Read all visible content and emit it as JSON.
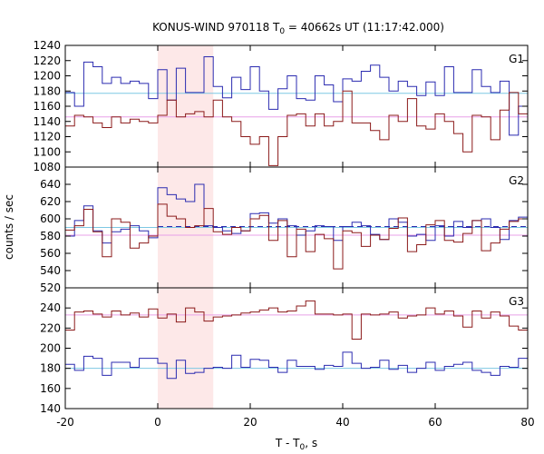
{
  "chart_data": {
    "type": "line",
    "title": "KONUS-WIND 970118 T",
    "title_sub": "0",
    "title_rest": " = 40662s UT (11:17:42.000)",
    "xlabel": "T - T",
    "xlabel_sub": "0",
    "xlabel_rest": ", s",
    "ylabel": "counts / sec",
    "xlim": [
      -20,
      80
    ],
    "x_ticks": [
      -20,
      0,
      20,
      40,
      60,
      80
    ],
    "x_tick_labels": [
      "-20",
      "0",
      "20",
      "40",
      "60",
      "80"
    ],
    "highlight_region": {
      "x_start": 0,
      "x_end": 12,
      "color": "#fde8e8"
    },
    "bin_edges": [
      -20,
      -18,
      -16,
      -14,
      -12,
      -10,
      -8,
      -6,
      -4,
      -2,
      0,
      2,
      4,
      6,
      8,
      10,
      12,
      14,
      16,
      18,
      20,
      22,
      24,
      26,
      28,
      30,
      32,
      34,
      36,
      38,
      40,
      42,
      44,
      46,
      48,
      50,
      52,
      54,
      56,
      58,
      60,
      62,
      64,
      66,
      68,
      70,
      72,
      74,
      76,
      78,
      80
    ],
    "panels": [
      {
        "name": "G1",
        "ylim": [
          1080,
          1240
        ],
        "y_ticks": [
          1080,
          1100,
          1120,
          1140,
          1160,
          1180,
          1200,
          1220,
          1240
        ],
        "series": [
          {
            "color": "#2b2bb0",
            "values": [
              1178,
              1160,
              1218,
              1212,
              1190,
              1198,
              1190,
              1193,
              1190,
              1170,
              1208,
              1168,
              1210,
              1178,
              1178,
              1225,
              1186,
              1171,
              1198,
              1182,
              1212,
              1180,
              1156,
              1183,
              1200,
              1170,
              1168,
              1200,
              1188,
              1166,
              1196,
              1193,
              1206,
              1214,
              1198,
              1180,
              1193,
              1186,
              1174,
              1192,
              1174,
              1212,
              1178,
              1178,
              1208,
              1186,
              1178,
              1193,
              1122,
              1160
            ]
          },
          {
            "color": "#8b1a1a",
            "values": [
              1134,
              1148,
              1146,
              1138,
              1132,
              1146,
              1138,
              1143,
              1140,
              1138,
              1148,
              1168,
              1146,
              1150,
              1153,
              1146,
              1168,
              1146,
              1140,
              1120,
              1110,
              1120,
              1082,
              1120,
              1148,
              1150,
              1134,
              1150,
              1134,
              1140,
              1180,
              1138,
              1138,
              1128,
              1116,
              1148,
              1140,
              1170,
              1134,
              1130,
              1150,
              1140,
              1124,
              1100,
              1148,
              1146,
              1116,
              1155,
              1178,
              1150
            ]
          }
        ],
        "mean_lines": [
          {
            "color": "#7ec8e3",
            "value": 1177
          },
          {
            "color": "#e8a0e8",
            "value": 1146
          }
        ]
      },
      {
        "name": "G2",
        "ylim": [
          520,
          660
        ],
        "y_ticks": [
          520,
          540,
          560,
          580,
          600,
          620,
          640
        ],
        "series": [
          {
            "color": "#2b2bb0",
            "values": [
              580,
              598,
              615,
              586,
              572,
              585,
              588,
              592,
              586,
              578,
              636,
              628,
              623,
              620,
              640,
              592,
              590,
              586,
              583,
              586,
              606,
              607,
              595,
              600,
              592,
              581,
              586,
              592,
              591,
              575,
              591,
              596,
              592,
              582,
              576,
              600,
              596,
              580,
              582,
              575,
              592,
              580,
              597,
              590,
              598,
              600,
              590,
              576,
              598,
              602
            ]
          },
          {
            "color": "#8b1a1a",
            "values": [
              587,
              592,
              611,
              585,
              556,
              600,
              596,
              566,
              572,
              580,
              617,
              603,
              600,
              590,
              592,
              612,
              585,
              582,
              590,
              586,
              600,
              604,
              575,
              598,
              556,
              588,
              562,
              582,
              577,
              542,
              586,
              584,
              568,
              581,
              576,
              589,
              601,
              562,
              570,
              593,
              598,
              575,
              573,
              583,
              598,
              563,
              572,
              588,
              597,
              600
            ]
          }
        ],
        "mean_lines": [
          {
            "color": "#7ec8e3",
            "value": 590
          },
          {
            "color": "#e8a0e8",
            "value": 581
          }
        ],
        "dashed_line": {
          "color": "#2b2bb0",
          "value": 591,
          "x_start": 0,
          "x_end": 80
        }
      },
      {
        "name": "G3",
        "ylim": [
          140,
          260
        ],
        "y_ticks": [
          140,
          160,
          180,
          200,
          220,
          240
        ],
        "series": [
          {
            "color": "#8b1a1a",
            "values": [
              218,
              236,
              237,
              234,
              231,
              237,
              233,
              235,
              231,
              239,
              230,
              234,
              226,
              240,
              236,
              227,
              231,
              232,
              233,
              235,
              236,
              238,
              240,
              236,
              237,
              242,
              247,
              234,
              234,
              233,
              234,
              209,
              234,
              233,
              234,
              236,
              230,
              232,
              233,
              240,
              234,
              237,
              232,
              221,
              237,
              230,
              236,
              232,
              222,
              218
            ]
          },
          {
            "color": "#2b2bb0",
            "values": [
              184,
              178,
              192,
              190,
              173,
              186,
              186,
              181,
              190,
              190,
              185,
              170,
              188,
              175,
              176,
              180,
              181,
              180,
              193,
              181,
              189,
              188,
              181,
              176,
              188,
              182,
              182,
              179,
              183,
              182,
              196,
              185,
              180,
              181,
              188,
              179,
              183,
              176,
              180,
              186,
              178,
              182,
              184,
              186,
              178,
              176,
              173,
              182,
              181,
              190
            ]
          }
        ],
        "mean_lines": [
          {
            "color": "#e8a0e8",
            "value": 233
          },
          {
            "color": "#7ec8e3",
            "value": 180
          }
        ]
      }
    ]
  }
}
